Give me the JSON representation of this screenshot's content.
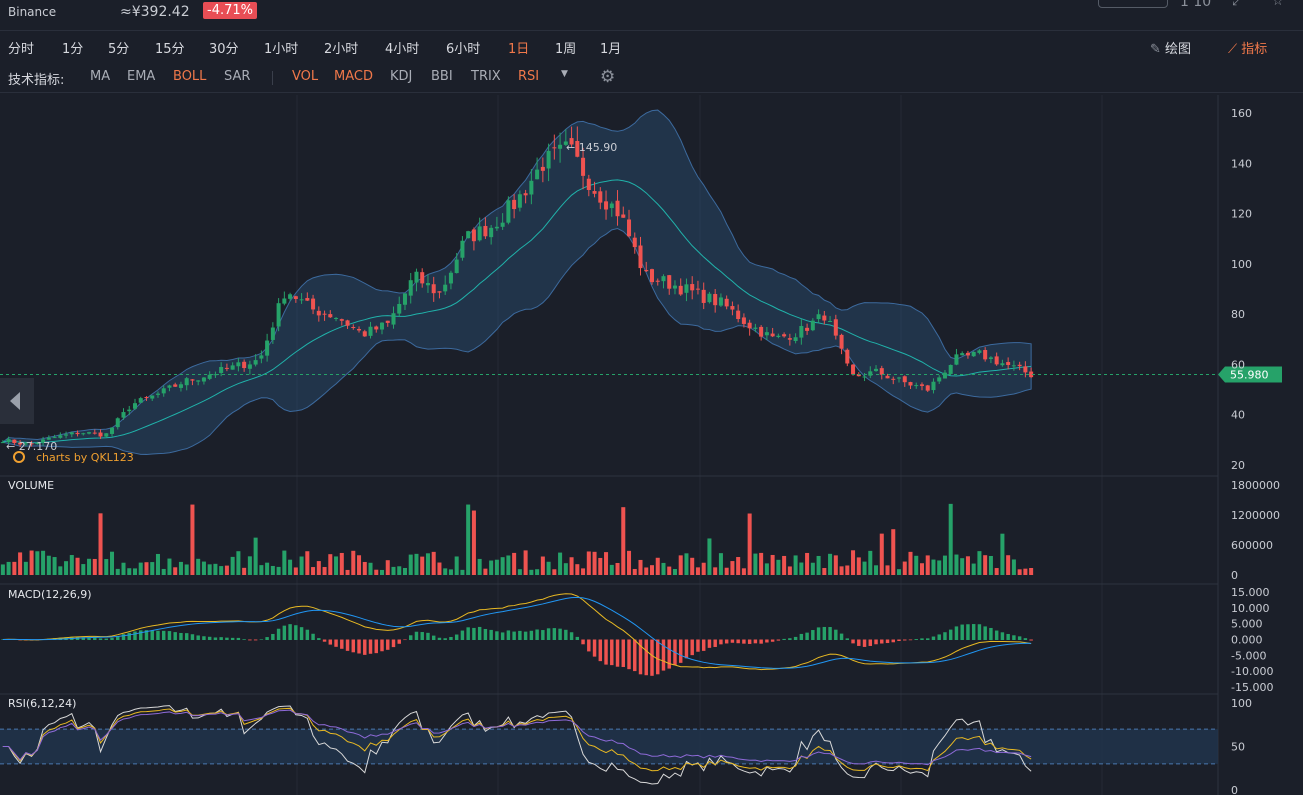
{
  "header": {
    "exchange": "Binance",
    "price_cny": "≈¥392.42",
    "change": "-4.71%",
    "top_right_number": "1 10"
  },
  "periods": [
    {
      "label": "分时",
      "active": false
    },
    {
      "label": "1分",
      "active": false
    },
    {
      "label": "5分",
      "active": false
    },
    {
      "label": "15分",
      "active": false
    },
    {
      "label": "30分",
      "active": false
    },
    {
      "label": "1小时",
      "active": false
    },
    {
      "label": "2小时",
      "active": false
    },
    {
      "label": "4小时",
      "active": false
    },
    {
      "label": "6小时",
      "active": false
    },
    {
      "label": "1日",
      "active": true
    },
    {
      "label": "1周",
      "active": false
    },
    {
      "label": "1月",
      "active": false
    }
  ],
  "toolbar": {
    "draw_label": "绘图",
    "indicator_label": "指标"
  },
  "indicators": {
    "label": "技术指标:",
    "items": [
      {
        "label": "MA",
        "on": false
      },
      {
        "label": "EMA",
        "on": false
      },
      {
        "label": "BOLL",
        "on": true
      },
      {
        "label": "SAR",
        "on": false
      },
      {
        "label": "VOL",
        "on": true
      },
      {
        "label": "MACD",
        "on": true
      },
      {
        "label": "KDJ",
        "on": false
      },
      {
        "label": "BBI",
        "on": false
      },
      {
        "label": "TRIX",
        "on": false
      },
      {
        "label": "RSI",
        "on": true
      }
    ]
  },
  "colors": {
    "up": "#26a269",
    "down": "#ef5350",
    "accent": "#f0784a",
    "band": "#2b4d73",
    "mid": "#20b2aa",
    "bg": "#1b1f29"
  },
  "chart_data": [
    {
      "type": "candlestick",
      "title": "",
      "ylim": [
        20,
        160
      ],
      "y_ticks": [
        "160",
        "140",
        "120",
        "100",
        "80",
        "60",
        "40",
        "20"
      ],
      "last_price": "55.980",
      "high_label": "← 145.90",
      "low_label": "← 27.170",
      "watermark": "charts by QKL123",
      "indicator": "BOLL",
      "keypoints_close": [
        30,
        28,
        31,
        33,
        32,
        44,
        48,
        53,
        56,
        59,
        62,
        90,
        82,
        79,
        72,
        76,
        95,
        88,
        110,
        115,
        125,
        140,
        145.9,
        130,
        120,
        95,
        92,
        88,
        84,
        76,
        70,
        73,
        80,
        55,
        57,
        53,
        50,
        62,
        64,
        60,
        56
      ]
    },
    {
      "type": "bar",
      "title": "VOLUME",
      "ylim": [
        0,
        1800000
      ],
      "y_ticks": [
        "1800000",
        "1200000",
        "600000",
        "0"
      ]
    },
    {
      "type": "line",
      "title": "MACD(12,26,9)",
      "ylim": [
        -15,
        15
      ],
      "y_ticks": [
        "15.000",
        "10.000",
        "5.000",
        "0.000",
        "-5.000",
        "-10.000",
        "-15.000"
      ]
    },
    {
      "type": "line",
      "title": "RSI(6,12,24)",
      "ylim": [
        0,
        100
      ],
      "y_ticks": [
        "100",
        "50",
        "0"
      ],
      "bands": [
        30,
        70
      ]
    }
  ]
}
